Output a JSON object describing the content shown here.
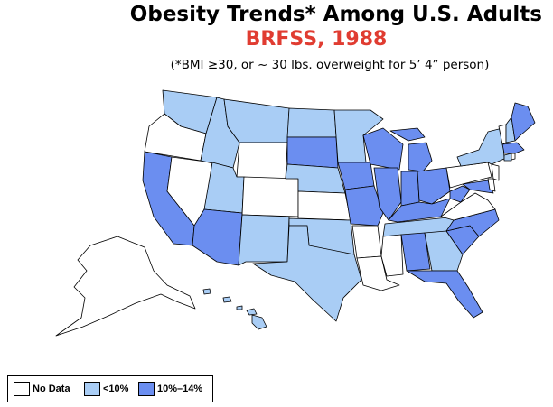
{
  "title": "Obesity Trends*  Among U.S. Adults",
  "subtitle": "BRFSS, 1988",
  "note": "(*BMI ≥30, or ~ 30 lbs. overweight for 5’ 4” person)",
  "colors": {
    "subtitle": "#e03c31",
    "no_data": "#ffffff",
    "lt10": "#a9cdf5",
    "p10_14": "#6b8ef0"
  },
  "legend": [
    {
      "key": "no_data",
      "label": "No Data"
    },
    {
      "key": "lt10",
      "label": "<10%"
    },
    {
      "key": "p10_14",
      "label": "10%–14%"
    }
  ],
  "states": {
    "WA": "lt10",
    "OR": "no_data",
    "CA": "p10_14",
    "NV": "no_data",
    "ID": "lt10",
    "MT": "lt10",
    "WY": "no_data",
    "UT": "lt10",
    "AZ": "p10_14",
    "CO": "no_data",
    "NM": "lt10",
    "ND": "lt10",
    "SD": "p10_14",
    "NE": "lt10",
    "KS": "no_data",
    "OK": "lt10",
    "TX": "lt10",
    "MN": "lt10",
    "IA": "p10_14",
    "MO": "p10_14",
    "AR": "no_data",
    "LA": "no_data",
    "WI": "p10_14",
    "IL": "p10_14",
    "MI": "p10_14",
    "IN": "p10_14",
    "OH": "p10_14",
    "KY": "p10_14",
    "TN": "lt10",
    "MS": "no_data",
    "AL": "p10_14",
    "GA": "lt10",
    "FL": "p10_14",
    "SC": "p10_14",
    "NC": "p10_14",
    "VA": "no_data",
    "WV": "p10_14",
    "MD": "p10_14",
    "DE": "no_data",
    "PA": "no_data",
    "NJ": "no_data",
    "NY": "lt10",
    "CT": "lt10",
    "RI": "no_data",
    "MA": "p10_14",
    "VT": "no_data",
    "NH": "lt10",
    "ME": "p10_14",
    "AK": "no_data",
    "HI": "lt10"
  }
}
